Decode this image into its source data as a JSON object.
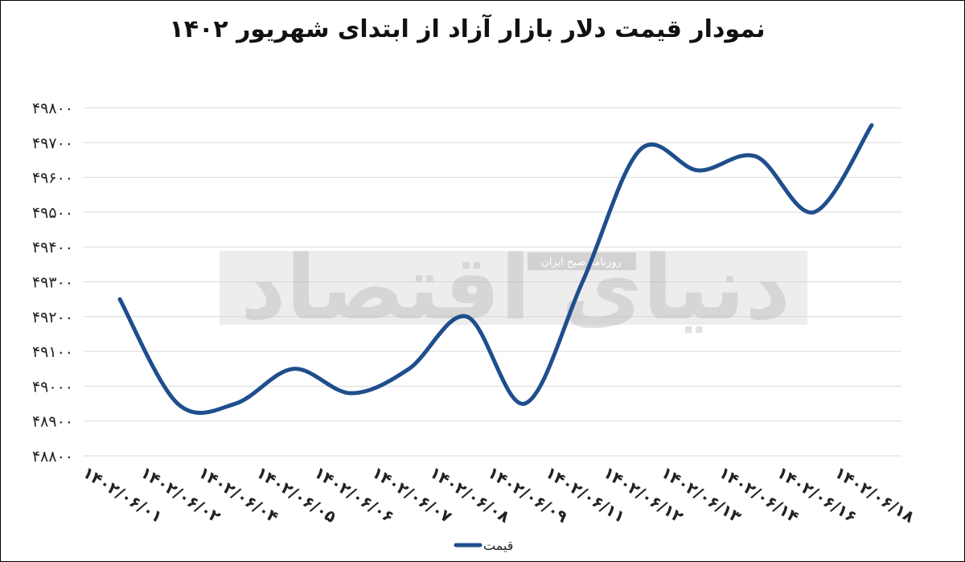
{
  "chart_data": {
    "type": "line",
    "title": "نمودار قیمت دلار بازار آزاد از ابتدای شهریور ۱۴۰۲",
    "x": [
      "۱۴۰۲/۰۶/۰۱",
      "۱۴۰۲/۰۶/۰۲",
      "۱۴۰۲/۰۶/۰۴",
      "۱۴۰۲/۰۶/۰۵",
      "۱۴۰۲/۰۶/۰۶",
      "۱۴۰۲/۰۶/۰۷",
      "۱۴۰۲/۰۶/۰۸",
      "۱۴۰۲/۰۶/۰۹",
      "۱۴۰۲/۰۶/۱۱",
      "۱۴۰۲/۰۶/۱۲",
      "۱۴۰۲/۰۶/۱۳",
      "۱۴۰۲/۰۶/۱۴",
      "۱۴۰۲/۰۶/۱۶",
      "۱۴۰۲/۰۶/۱۸"
    ],
    "series": [
      {
        "name": "قیمت",
        "values": [
          49250,
          48950,
          48950,
          49050,
          48980,
          49050,
          49200,
          48950,
          49300,
          49680,
          49620,
          49660,
          49500,
          49750
        ]
      }
    ],
    "y_ticks": [
      "۴۸۸۰۰",
      "۴۸۹۰۰",
      "۴۹۰۰۰",
      "۴۹۱۰۰",
      "۴۹۲۰۰",
      "۴۹۳۰۰",
      "۴۹۴۰۰",
      "۴۹۵۰۰",
      "۴۹۶۰۰",
      "۴۹۷۰۰",
      "۴۹۸۰۰"
    ],
    "y_tick_values": [
      48800,
      48900,
      49000,
      49100,
      49200,
      49300,
      49400,
      49500,
      49600,
      49700,
      49800
    ],
    "ylim": [
      48800,
      49800
    ],
    "grid": true,
    "legend": "bottom",
    "line_color": "#1f4e8c"
  },
  "watermark": {
    "logo_text": "دنیای اقتصاد",
    "tagline": "روزنامه صبح ایران"
  }
}
